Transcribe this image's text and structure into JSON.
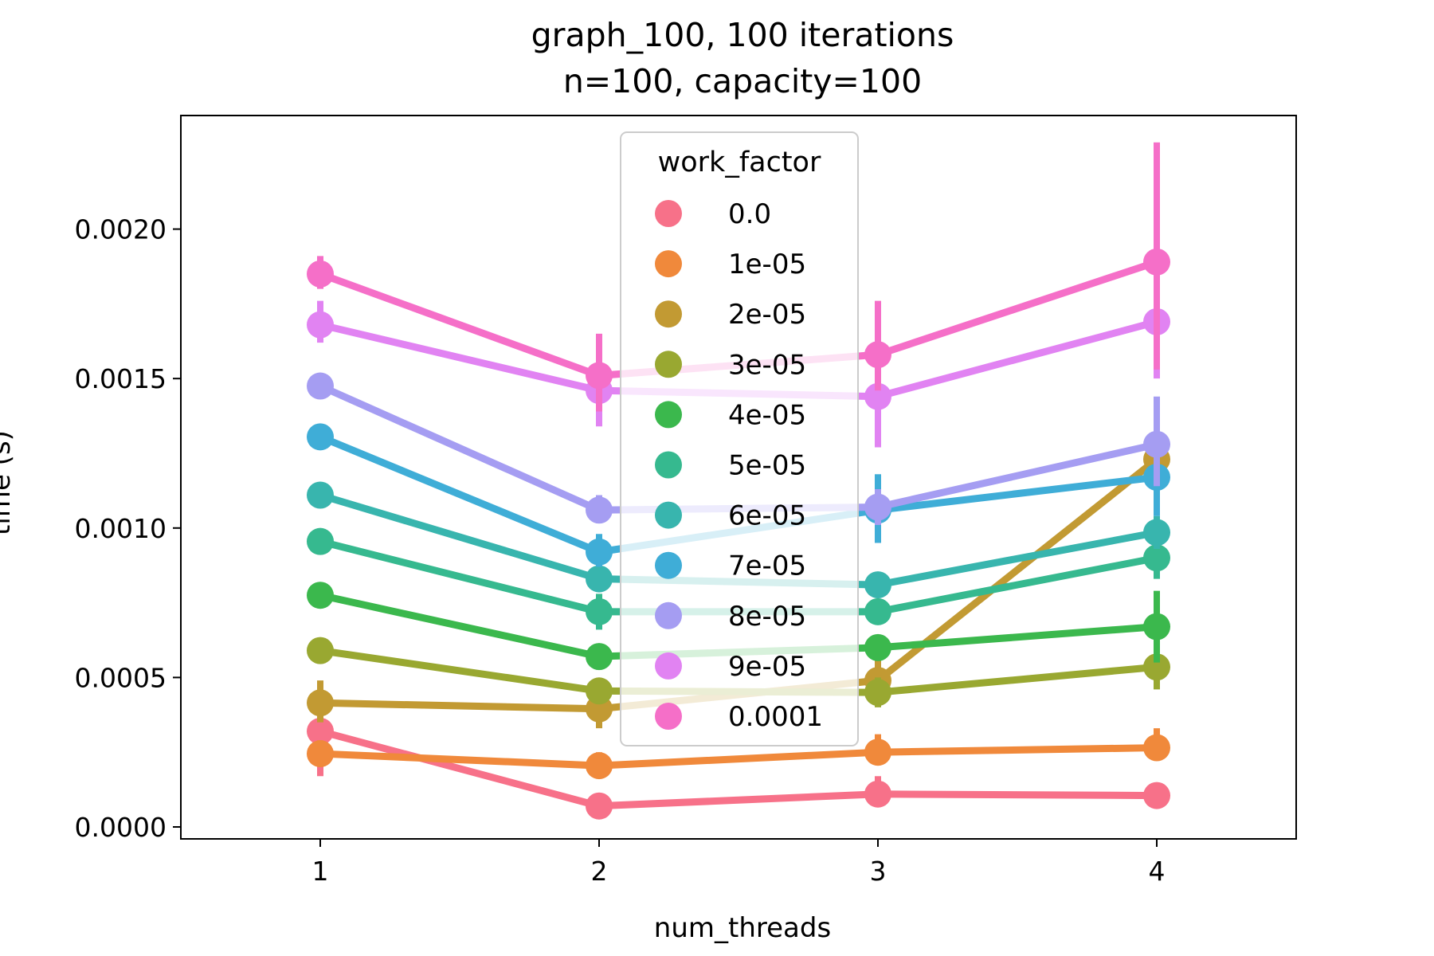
{
  "chart_data": {
    "type": "line",
    "title": "graph_100, 100 iterations",
    "subtitle": "n=100, capacity=100",
    "xlabel": "num_threads",
    "ylabel": "time (s)",
    "categories": [
      "1",
      "2",
      "3",
      "4"
    ],
    "ylim": [
      -4e-05,
      0.00238
    ],
    "yticks": [
      0.0,
      0.0005,
      0.001,
      0.0015,
      0.002
    ],
    "ytick_labels": [
      "0.0000",
      "0.0005",
      "0.0010",
      "0.0015",
      "0.0020"
    ],
    "grid": false,
    "legend": {
      "title": "work_factor",
      "placement": "upper center"
    },
    "series": [
      {
        "name": "0.0",
        "color": "#f77189",
        "values": [
          0.00032,
          7e-05,
          0.00011,
          0.000105
        ],
        "errors": [
          [
            0.00017,
            0.00048
          ],
          [
            5e-05,
            9e-05
          ],
          [
            7e-05,
            0.00017
          ],
          [
            9e-05,
            0.00012
          ]
        ]
      },
      {
        "name": "1e-05",
        "color": "#f0893b",
        "values": [
          0.000245,
          0.000205,
          0.00025,
          0.000265
        ],
        "errors": [
          [
            0.00021,
            0.00029
          ],
          [
            0.00018,
            0.00025
          ],
          [
            0.00021,
            0.00031
          ],
          [
            0.00023,
            0.00033
          ]
        ]
      },
      {
        "name": "2e-05",
        "color": "#c29a33",
        "values": [
          0.000415,
          0.000395,
          0.00049,
          0.00123
        ],
        "errors": [
          [
            0.00035,
            0.00049
          ],
          [
            0.00033,
            0.00046
          ],
          [
            0.00044,
            0.00056
          ],
          [
            0.00117,
            0.0013
          ]
        ]
      },
      {
        "name": "3e-05",
        "color": "#99a831",
        "values": [
          0.00059,
          0.000455,
          0.00045,
          0.000535
        ],
        "errors": [
          [
            0.00056,
            0.00062
          ],
          [
            0.00042,
            0.00049
          ],
          [
            0.0004,
            0.0005
          ],
          [
            0.00046,
            0.00061
          ]
        ]
      },
      {
        "name": "4e-05",
        "color": "#3bb84d",
        "values": [
          0.000775,
          0.00057,
          0.0006,
          0.00067
        ],
        "errors": [
          [
            0.00074,
            0.00081
          ],
          [
            0.00054,
            0.0006
          ],
          [
            0.00057,
            0.00063
          ],
          [
            0.00055,
            0.00079
          ]
        ]
      },
      {
        "name": "5e-05",
        "color": "#36b98f",
        "values": [
          0.000955,
          0.00072,
          0.00072,
          0.0009
        ],
        "errors": [
          [
            0.00093,
            0.00098
          ],
          [
            0.00066,
            0.00078
          ],
          [
            0.00069,
            0.00075
          ],
          [
            0.00083,
            0.00097
          ]
        ]
      },
      {
        "name": "6e-05",
        "color": "#38b5ae",
        "values": [
          0.00111,
          0.00083,
          0.00081,
          0.000985
        ],
        "errors": [
          [
            0.00108,
            0.00114
          ],
          [
            0.0008,
            0.00086
          ],
          [
            0.00078,
            0.00084
          ],
          [
            0.00093,
            0.00104
          ]
        ]
      },
      {
        "name": "7e-05",
        "color": "#3fadd7",
        "values": [
          0.001305,
          0.00092,
          0.00106,
          0.00117
        ],
        "errors": [
          [
            0.00127,
            0.00134
          ],
          [
            0.00087,
            0.00098
          ],
          [
            0.00095,
            0.00118
          ],
          [
            0.00104,
            0.00131
          ]
        ]
      },
      {
        "name": "8e-05",
        "color": "#a59df2",
        "values": [
          0.001475,
          0.00106,
          0.00107,
          0.00128
        ],
        "errors": [
          [
            0.00144,
            0.00151
          ],
          [
            0.00102,
            0.00111
          ],
          [
            0.00101,
            0.00113
          ],
          [
            0.00114,
            0.00144
          ]
        ]
      },
      {
        "name": "9e-05",
        "color": "#e183f2",
        "values": [
          0.00168,
          0.00146,
          0.00144,
          0.00169
        ],
        "errors": [
          [
            0.00162,
            0.00176
          ],
          [
            0.00134,
            0.00158
          ],
          [
            0.00127,
            0.00157
          ],
          [
            0.0015,
            0.00187
          ]
        ]
      },
      {
        "name": "0.0001",
        "color": "#f56fc8",
        "values": [
          0.00185,
          0.00151,
          0.00158,
          0.00189
        ],
        "errors": [
          [
            0.0018,
            0.00191
          ],
          [
            0.00139,
            0.00165
          ],
          [
            0.00146,
            0.00176
          ],
          [
            0.00153,
            0.00229
          ]
        ]
      }
    ]
  }
}
